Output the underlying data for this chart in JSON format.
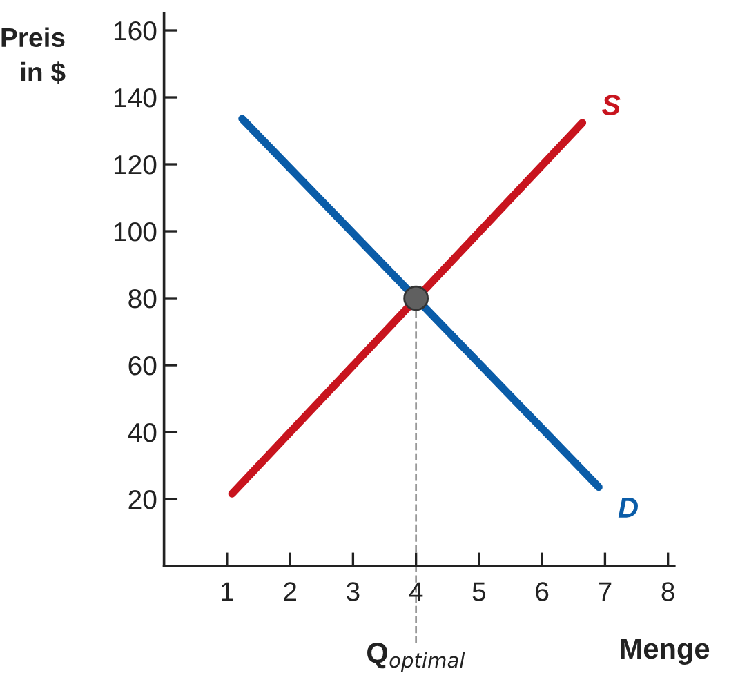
{
  "chart_data": {
    "type": "line",
    "xlabel": "Menge",
    "ylabel": "Preis\nin $",
    "xlim": [
      0,
      8.1
    ],
    "ylim": [
      0,
      165
    ],
    "xticks": [
      1,
      2,
      3,
      4,
      5,
      6,
      7,
      8
    ],
    "yticks": [
      20,
      40,
      60,
      80,
      100,
      120,
      140,
      160
    ],
    "grid": false,
    "legend": false,
    "marker": "none",
    "line_style": "solid",
    "series": [
      {
        "name": "S",
        "color": "#c8141e",
        "x": [
          1.08,
          6.64
        ],
        "values": [
          21.6,
          132.4
        ]
      },
      {
        "name": "D",
        "color": "#0a5ca8",
        "x": [
          1.24,
          6.9
        ],
        "values": [
          133.6,
          23.6
        ]
      },
      {
        "type": "scatter",
        "color": "#606060",
        "x": [
          4
        ],
        "values": [
          80
        ],
        "marker": "circle"
      }
    ],
    "ref_lines": [
      {
        "axis": "x",
        "value": 4,
        "label": "Q$_{optimal}$",
        "color": "#999999",
        "line_style": "dashed"
      }
    ]
  }
}
